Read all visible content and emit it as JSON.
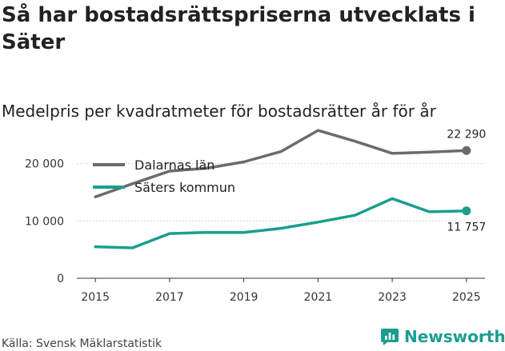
{
  "header": {
    "title": "Så har bostadsrättspriserna utvecklats i Säter",
    "subtitle": "Medelpris per kvadratmeter för bostadsrätter år för år"
  },
  "footer": {
    "source": "Källa: Svensk Mäklarstatistik",
    "brand": "Newsworthy",
    "brand_color": "#1a9e8f"
  },
  "chart_data": {
    "type": "line",
    "title": "Så har bostadsrättspriserna utvecklats i Säter",
    "subtitle": "Medelpris per kvadratmeter för bostadsrätter år för år",
    "xlabel": "",
    "ylabel": "",
    "x": [
      2015,
      2016,
      2017,
      2018,
      2019,
      2020,
      2021,
      2022,
      2023,
      2024,
      2025
    ],
    "xticks": [
      2015,
      2017,
      2019,
      2021,
      2023,
      2025
    ],
    "xlim": [
      2014.5,
      2025.5
    ],
    "ylim": [
      0,
      24000
    ],
    "yticks": [
      {
        "value": 0,
        "label": "0"
      },
      {
        "value": 10000,
        "label": "10 000"
      },
      {
        "value": 20000,
        "label": "20 000"
      }
    ],
    "legend_position": "top-left",
    "series": [
      {
        "name": "Dalarnas län",
        "color": "#6b6b6f",
        "values": [
          14200,
          16500,
          18700,
          19200,
          20300,
          22100,
          25800,
          23900,
          21800,
          22000,
          22290
        ],
        "end_label": "22 290",
        "end_label_position": "above"
      },
      {
        "name": "Säters kommun",
        "color": "#1a9e8f",
        "values": [
          5500,
          5300,
          7800,
          8000,
          8000,
          8700,
          9800,
          11000,
          13900,
          11600,
          11757
        ],
        "end_label": "11 757",
        "end_label_position": "below"
      }
    ]
  }
}
